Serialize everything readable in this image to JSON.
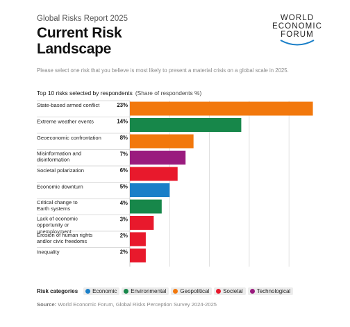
{
  "header": {
    "report_label": "Global Risks Report 2025",
    "title": "Current Risk Landscape",
    "logo": [
      "WORLD",
      "ECONOMIC",
      "FORUM"
    ]
  },
  "instruction": "Please select one risk that you believe is most likely to present a material crisis on a global scale in 2025.",
  "chart_heading": {
    "title": "Top 10 risks selected by respondents",
    "subtitle": "(Share of respondents %)"
  },
  "legend": {
    "title": "Risk categories",
    "items": [
      {
        "label": "Economic",
        "color": "#1a7fc8"
      },
      {
        "label": "Environmental",
        "color": "#17874a"
      },
      {
        "label": "Geopolitical",
        "color": "#f2780c"
      },
      {
        "label": "Societal",
        "color": "#e8192c"
      },
      {
        "label": "Technological",
        "color": "#9a1b7e"
      }
    ]
  },
  "source": {
    "label": "Source:",
    "text": "World Economic Forum, Global Risks Perception Survey 2024-2025"
  },
  "chart_data": {
    "type": "bar",
    "orientation": "horizontal",
    "categories": [
      "State-based armed conflict",
      "Extreme weather events",
      "Geoeconomic confrontation",
      "Misinformation and disinformation",
      "Societal polarization",
      "Economic downturn",
      "Critical change to Earth systems",
      "Lack of economic opportunity or unemployment",
      "Erosion of human rights and/or civic freedoms",
      "Inequality"
    ],
    "values": [
      23,
      14,
      8,
      7,
      6,
      5,
      4,
      3,
      2,
      2
    ],
    "value_labels": [
      "23%",
      "14%",
      "8%",
      "7%",
      "6%",
      "5%",
      "4%",
      "3%",
      "2%",
      "2%"
    ],
    "risk_category": [
      "Geopolitical",
      "Environmental",
      "Geopolitical",
      "Technological",
      "Societal",
      "Economic",
      "Environmental",
      "Societal",
      "Societal",
      "Societal"
    ],
    "xlim": [
      0,
      24
    ],
    "grid": true,
    "legend_placement": "bottom"
  }
}
